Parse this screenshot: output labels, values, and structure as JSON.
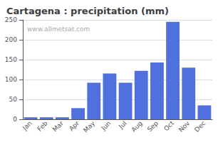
{
  "chart_data": {
    "type": "bar",
    "title": "Cartagena : precipitation (mm)",
    "categories": [
      "Jan",
      "Feb",
      "Mar",
      "Apr",
      "May",
      "Jun",
      "Jul",
      "Aug",
      "Sep",
      "Oct",
      "Nov",
      "Dec"
    ],
    "values": [
      5,
      5,
      5,
      28,
      92,
      115,
      92,
      122,
      143,
      245,
      130,
      35
    ],
    "ylim": [
      0,
      250
    ],
    "yticks": [
      0,
      50,
      100,
      150,
      200,
      250
    ],
    "grid": true,
    "annotations": [
      "www.allmetsat.com"
    ]
  }
}
